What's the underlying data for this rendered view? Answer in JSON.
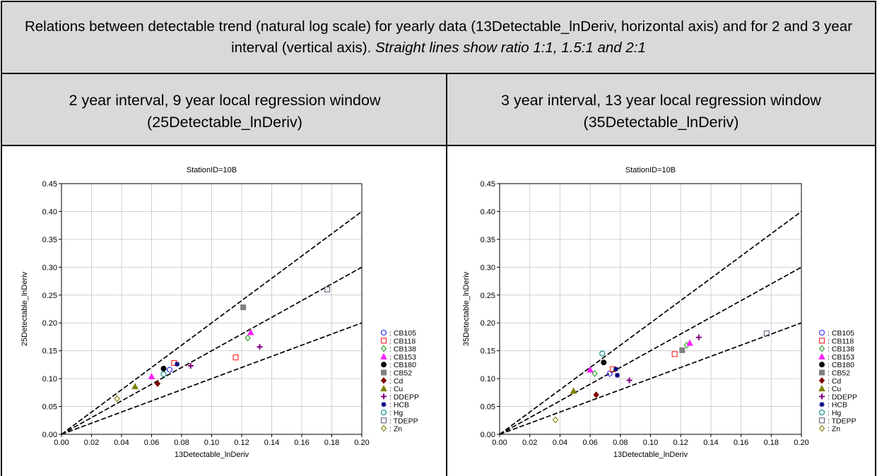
{
  "page": {
    "title_main": "Relations between detectable trend (natural log scale) for yearly data (13Detectable_lnDeriv, horizontal axis) and for 2 and 3 year interval (vertical axis).",
    "title_italic": "Straight lines show ratio 1:1, 1.5:1 and 2:1",
    "left_header_line1": "2 year interval, 9 year local regression window",
    "left_header_line2": "(25Detectable_lnDeriv)",
    "right_header_line1": "3 year interval, 13 year local regression window",
    "right_header_line2": "(35Detectable_lnDeriv)"
  },
  "chart_data": [
    {
      "type": "scatter",
      "title": "StationID=10B",
      "xlabel": "13Detectable_lnDeriv",
      "ylabel": "25Detectable_lnDeriv",
      "xlim": [
        0,
        0.2
      ],
      "ylim": [
        0,
        0.45
      ],
      "x_ticks": [
        "0.00",
        "0.02",
        "0.04",
        "0.06",
        "0.08",
        "0.10",
        "0.12",
        "0.14",
        "0.16",
        "0.18",
        "0.20"
      ],
      "y_ticks": [
        "0.00",
        "0.05",
        "0.10",
        "0.15",
        "0.20",
        "0.25",
        "0.30",
        "0.35",
        "0.40",
        "0.45"
      ],
      "grid": true,
      "legend_position": "right",
      "reference_lines": [
        {
          "slope": 1,
          "style": "dashed"
        },
        {
          "slope": 1.5,
          "style": "dashed"
        },
        {
          "slope": 2,
          "style": "dashed"
        }
      ],
      "series": [
        {
          "name": ": CB105",
          "marker": "circle-open",
          "color": "#2020ff",
          "points": [
            [
              0.072,
              0.116
            ]
          ]
        },
        {
          "name": ": CB118",
          "marker": "square-open",
          "color": "#ff2020",
          "points": [
            [
              0.075,
              0.128
            ],
            [
              0.116,
              0.138
            ]
          ]
        },
        {
          "name": ": CB138",
          "marker": "diamond-open",
          "color": "#20a020",
          "points": [
            [
              0.124,
              0.173
            ]
          ]
        },
        {
          "name": ": CB153",
          "marker": "triangle-filled",
          "color": "#ff20ff",
          "points": [
            [
              0.06,
              0.104
            ],
            [
              0.126,
              0.183
            ]
          ]
        },
        {
          "name": ": CB180",
          "marker": "circle-filled",
          "color": "#000000",
          "points": [
            [
              0.068,
              0.118
            ]
          ]
        },
        {
          "name": ": CB52",
          "marker": "square-filled",
          "color": "#808080",
          "points": [
            [
              0.121,
              0.228
            ]
          ]
        },
        {
          "name": ": Cd",
          "marker": "diamond-filled",
          "color": "#800000",
          "points": [
            [
              0.064,
              0.091
            ]
          ]
        },
        {
          "name": ": Cu",
          "marker": "triangle-filled",
          "color": "#808000",
          "points": [
            [
              0.049,
              0.086
            ]
          ]
        },
        {
          "name": ": DDEPP",
          "marker": "plus",
          "color": "#800080",
          "points": [
            [
              0.086,
              0.123
            ],
            [
              0.132,
              0.157
            ]
          ]
        },
        {
          "name": ": HCB",
          "marker": "asterisk",
          "color": "#000080",
          "points": [
            [
              0.077,
              0.126
            ]
          ]
        },
        {
          "name": ": Hg",
          "marker": "circle-open",
          "color": "#008080",
          "points": [
            [
              0.068,
              0.108
            ]
          ]
        },
        {
          "name": ": TDEPP",
          "marker": "square-open",
          "color": "#606080",
          "points": [
            [
              0.177,
              0.26
            ]
          ]
        },
        {
          "name": ": Zn",
          "marker": "diamond-open",
          "color": "#808000",
          "points": [
            [
              0.037,
              0.064
            ]
          ]
        }
      ]
    },
    {
      "type": "scatter",
      "title": "StationID=10B",
      "xlabel": "13Detectable_lnDeriv",
      "ylabel": "35Detectable_lnDeriv",
      "xlim": [
        0,
        0.2
      ],
      "ylim": [
        0,
        0.45
      ],
      "x_ticks": [
        "0.00",
        "0.02",
        "0.04",
        "0.06",
        "0.08",
        "0.10",
        "0.12",
        "0.14",
        "0.16",
        "0.18",
        "0.20"
      ],
      "y_ticks": [
        "0.00",
        "0.05",
        "0.10",
        "0.15",
        "0.20",
        "0.25",
        "0.30",
        "0.35",
        "0.40",
        "0.45"
      ],
      "grid": true,
      "legend_position": "right",
      "reference_lines": [
        {
          "slope": 1,
          "style": "dashed"
        },
        {
          "slope": 1.5,
          "style": "dashed"
        },
        {
          "slope": 2,
          "style": "dashed"
        }
      ],
      "series": [
        {
          "name": ": CB105",
          "marker": "circle-open",
          "color": "#2020ff",
          "points": [
            [
              0.073,
              0.109
            ]
          ]
        },
        {
          "name": ": CB118",
          "marker": "square-open",
          "color": "#ff2020",
          "points": [
            [
              0.075,
              0.117
            ],
            [
              0.116,
              0.144
            ]
          ]
        },
        {
          "name": ": CB138",
          "marker": "diamond-open",
          "color": "#20a020",
          "points": [
            [
              0.063,
              0.109
            ],
            [
              0.124,
              0.16
            ]
          ]
        },
        {
          "name": ": CB153",
          "marker": "triangle-filled",
          "color": "#ff20ff",
          "points": [
            [
              0.06,
              0.116
            ],
            [
              0.126,
              0.164
            ]
          ]
        },
        {
          "name": ": CB180",
          "marker": "circle-filled",
          "color": "#000000",
          "points": [
            [
              0.069,
              0.129
            ]
          ]
        },
        {
          "name": ": CB52",
          "marker": "square-filled",
          "color": "#808080",
          "points": [
            [
              0.121,
              0.151
            ]
          ]
        },
        {
          "name": ": Cd",
          "marker": "diamond-filled",
          "color": "#800000",
          "points": [
            [
              0.064,
              0.071
            ]
          ]
        },
        {
          "name": ": Cu",
          "marker": "triangle-filled",
          "color": "#808000",
          "points": [
            [
              0.049,
              0.078
            ]
          ]
        },
        {
          "name": ": DDEPP",
          "marker": "plus",
          "color": "#800080",
          "points": [
            [
              0.086,
              0.097
            ],
            [
              0.132,
              0.174
            ]
          ]
        },
        {
          "name": ": HCB",
          "marker": "asterisk",
          "color": "#000080",
          "points": [
            [
              0.077,
              0.117
            ],
            [
              0.078,
              0.106
            ]
          ]
        },
        {
          "name": ": Hg",
          "marker": "circle-open",
          "color": "#008080",
          "points": [
            [
              0.068,
              0.145
            ]
          ]
        },
        {
          "name": ": TDEPP",
          "marker": "square-open",
          "color": "#606080",
          "points": [
            [
              0.177,
              0.181
            ]
          ]
        },
        {
          "name": ": Zn",
          "marker": "diamond-open",
          "color": "#808000",
          "points": [
            [
              0.037,
              0.026
            ]
          ]
        }
      ]
    }
  ]
}
